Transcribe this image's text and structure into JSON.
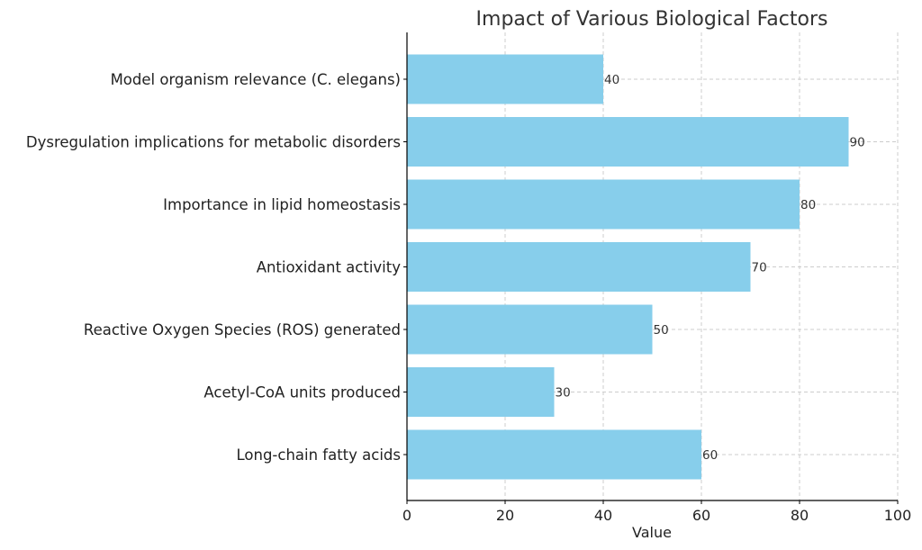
{
  "chart_data": {
    "type": "bar",
    "orientation": "horizontal",
    "title": "Impact of Various Biological Factors",
    "xlabel": "Value",
    "ylabel": "",
    "xlim": [
      0,
      100
    ],
    "xticks": [
      0,
      20,
      40,
      60,
      80,
      100
    ],
    "grid": true,
    "bar_color": "#87CEEB",
    "categories": [
      "Model organism relevance (C. elegans)",
      "Dysregulation implications for metabolic disorders",
      "Importance in lipid homeostasis",
      "Antioxidant activity",
      "Reactive Oxygen Species (ROS) generated",
      "Acetyl-CoA units produced",
      "Long-chain fatty acids"
    ],
    "values": [
      40,
      90,
      80,
      70,
      50,
      30,
      60
    ]
  }
}
